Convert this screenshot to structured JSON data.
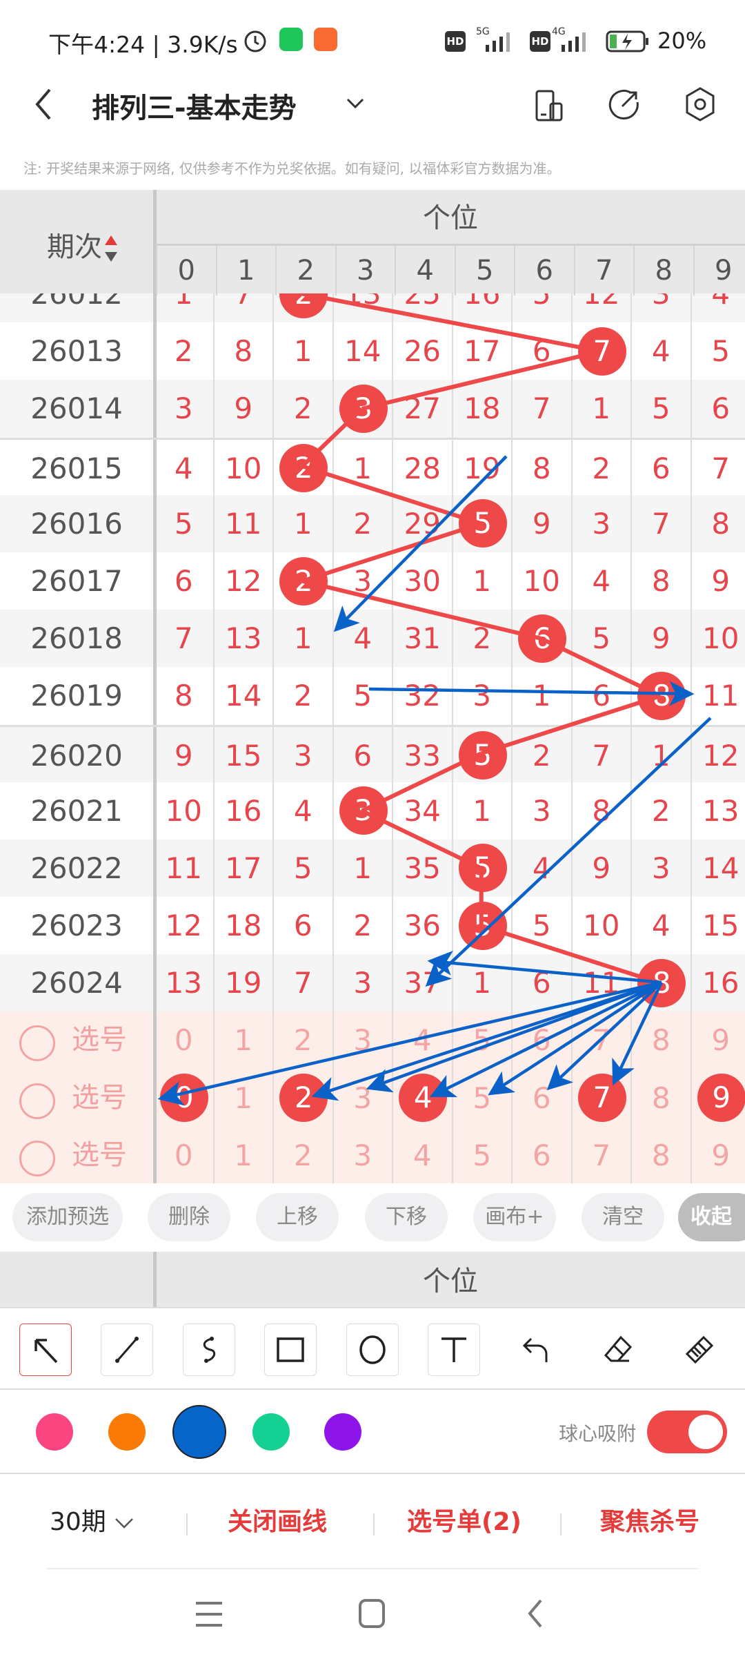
{
  "status_bar": {
    "time": "下午4:24",
    "speed": "3.9K/s",
    "network1": "5G",
    "network2": "4G",
    "hd": "HD",
    "battery": "20%",
    "battery_level": 0.2
  },
  "titlebar": {
    "title": "排列三-基本走势"
  },
  "note": "注: 开奖结果来源于网络, 仅供参考不作为兑奖依据。如有疑问, 以福体彩官方数据为准。",
  "table": {
    "period_header": "期次",
    "position_header": "个位",
    "digits": [
      "0",
      "1",
      "2",
      "3",
      "4",
      "5",
      "6",
      "7",
      "8",
      "9"
    ],
    "rows": [
      {
        "period": "26012",
        "winning": 2,
        "cells": [
          1,
          7,
          2,
          13,
          25,
          16,
          5,
          12,
          3,
          4
        ]
      },
      {
        "period": "26013",
        "winning": 7,
        "cells": [
          2,
          8,
          1,
          14,
          26,
          17,
          6,
          7,
          4,
          5
        ]
      },
      {
        "period": "26014",
        "winning": 3,
        "cells": [
          3,
          9,
          2,
          3,
          27,
          18,
          7,
          1,
          5,
          6
        ]
      },
      {
        "period": "26015",
        "winning": 2,
        "cells": [
          4,
          10,
          2,
          1,
          28,
          19,
          8,
          2,
          6,
          7
        ]
      },
      {
        "period": "26016",
        "winning": 5,
        "cells": [
          5,
          11,
          1,
          2,
          29,
          5,
          9,
          3,
          7,
          8
        ]
      },
      {
        "period": "26017",
        "winning": 2,
        "cells": [
          6,
          12,
          2,
          3,
          30,
          1,
          10,
          4,
          8,
          9
        ]
      },
      {
        "period": "26018",
        "winning": 6,
        "cells": [
          7,
          13,
          1,
          4,
          31,
          2,
          6,
          5,
          9,
          10
        ]
      },
      {
        "period": "26019",
        "winning": 8,
        "cells": [
          8,
          14,
          2,
          5,
          32,
          3,
          1,
          6,
          8,
          11
        ]
      },
      {
        "period": "26020",
        "winning": 5,
        "cells": [
          9,
          15,
          3,
          6,
          33,
          5,
          2,
          7,
          1,
          12
        ]
      },
      {
        "period": "26021",
        "winning": 3,
        "cells": [
          10,
          16,
          4,
          3,
          34,
          1,
          3,
          8,
          2,
          13
        ]
      },
      {
        "period": "26022",
        "winning": 5,
        "cells": [
          11,
          17,
          5,
          1,
          35,
          5,
          4,
          9,
          3,
          14
        ]
      },
      {
        "period": "26023",
        "winning": 5,
        "cells": [
          12,
          18,
          6,
          2,
          36,
          5,
          5,
          10,
          4,
          15
        ]
      },
      {
        "period": "26024",
        "winning": 8,
        "cells": [
          13,
          19,
          7,
          3,
          37,
          1,
          6,
          11,
          8,
          16
        ]
      }
    ],
    "select_rows": [
      {
        "label": "选号",
        "selected": []
      },
      {
        "label": "选号",
        "selected": [
          0,
          2,
          4,
          7,
          9
        ]
      },
      {
        "label": "选号",
        "selected": []
      }
    ]
  },
  "action_buttons": [
    "添加预选",
    "删除",
    "上移",
    "下移",
    "画布+",
    "清空",
    "收起"
  ],
  "second_header": {
    "position_header": "个位"
  },
  "draw_tools": [
    "arrow-tool",
    "line-tool",
    "curve-tool",
    "rectangle-tool",
    "circle-tool",
    "text-tool",
    "undo",
    "eraser",
    "clear-brush"
  ],
  "colors": {
    "swatches": [
      "#fb4581",
      "#fb7a05",
      "#0565c8",
      "#14d092",
      "#8e15ea"
    ],
    "selected": "#0565c8",
    "ball_color": "#ef4848",
    "line_color": "#ef4848"
  },
  "snap": {
    "label": "球心吸附",
    "on": true
  },
  "bottom_bar": {
    "periods": "30期",
    "close_drawing": "关闭画线",
    "selection_list": "选号单(2)",
    "focus_kill": "聚焦杀号"
  }
}
